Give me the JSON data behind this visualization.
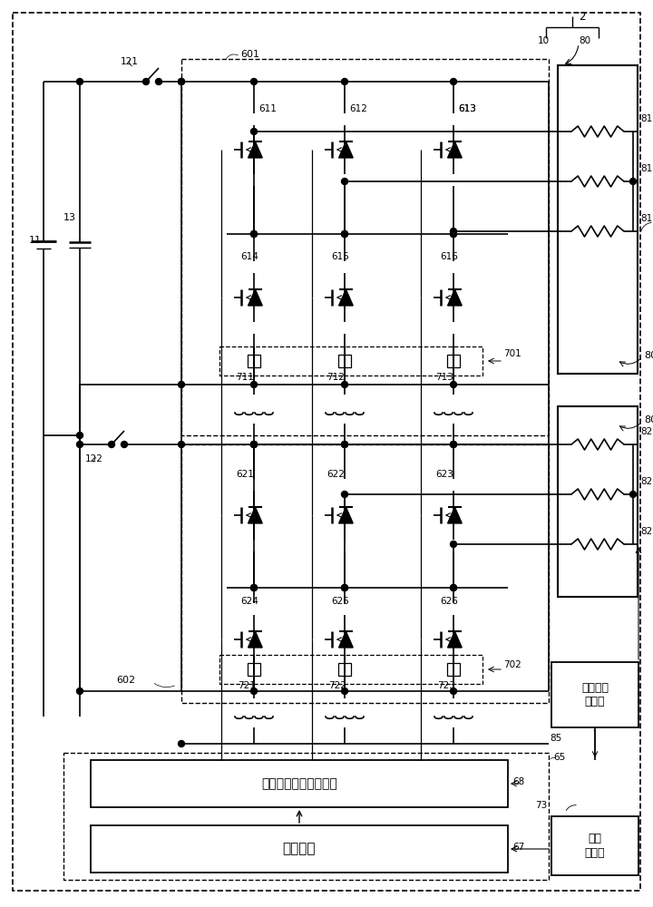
{
  "bg_color": "#ffffff",
  "fig_width": 7.2,
  "fig_height": 10.0,
  "text_drive": "驱动电路（预驱动器）",
  "text_micro": "微计算机",
  "text_rotation": "旋转角度\n传感器",
  "text_temp": "温度\n传感器"
}
